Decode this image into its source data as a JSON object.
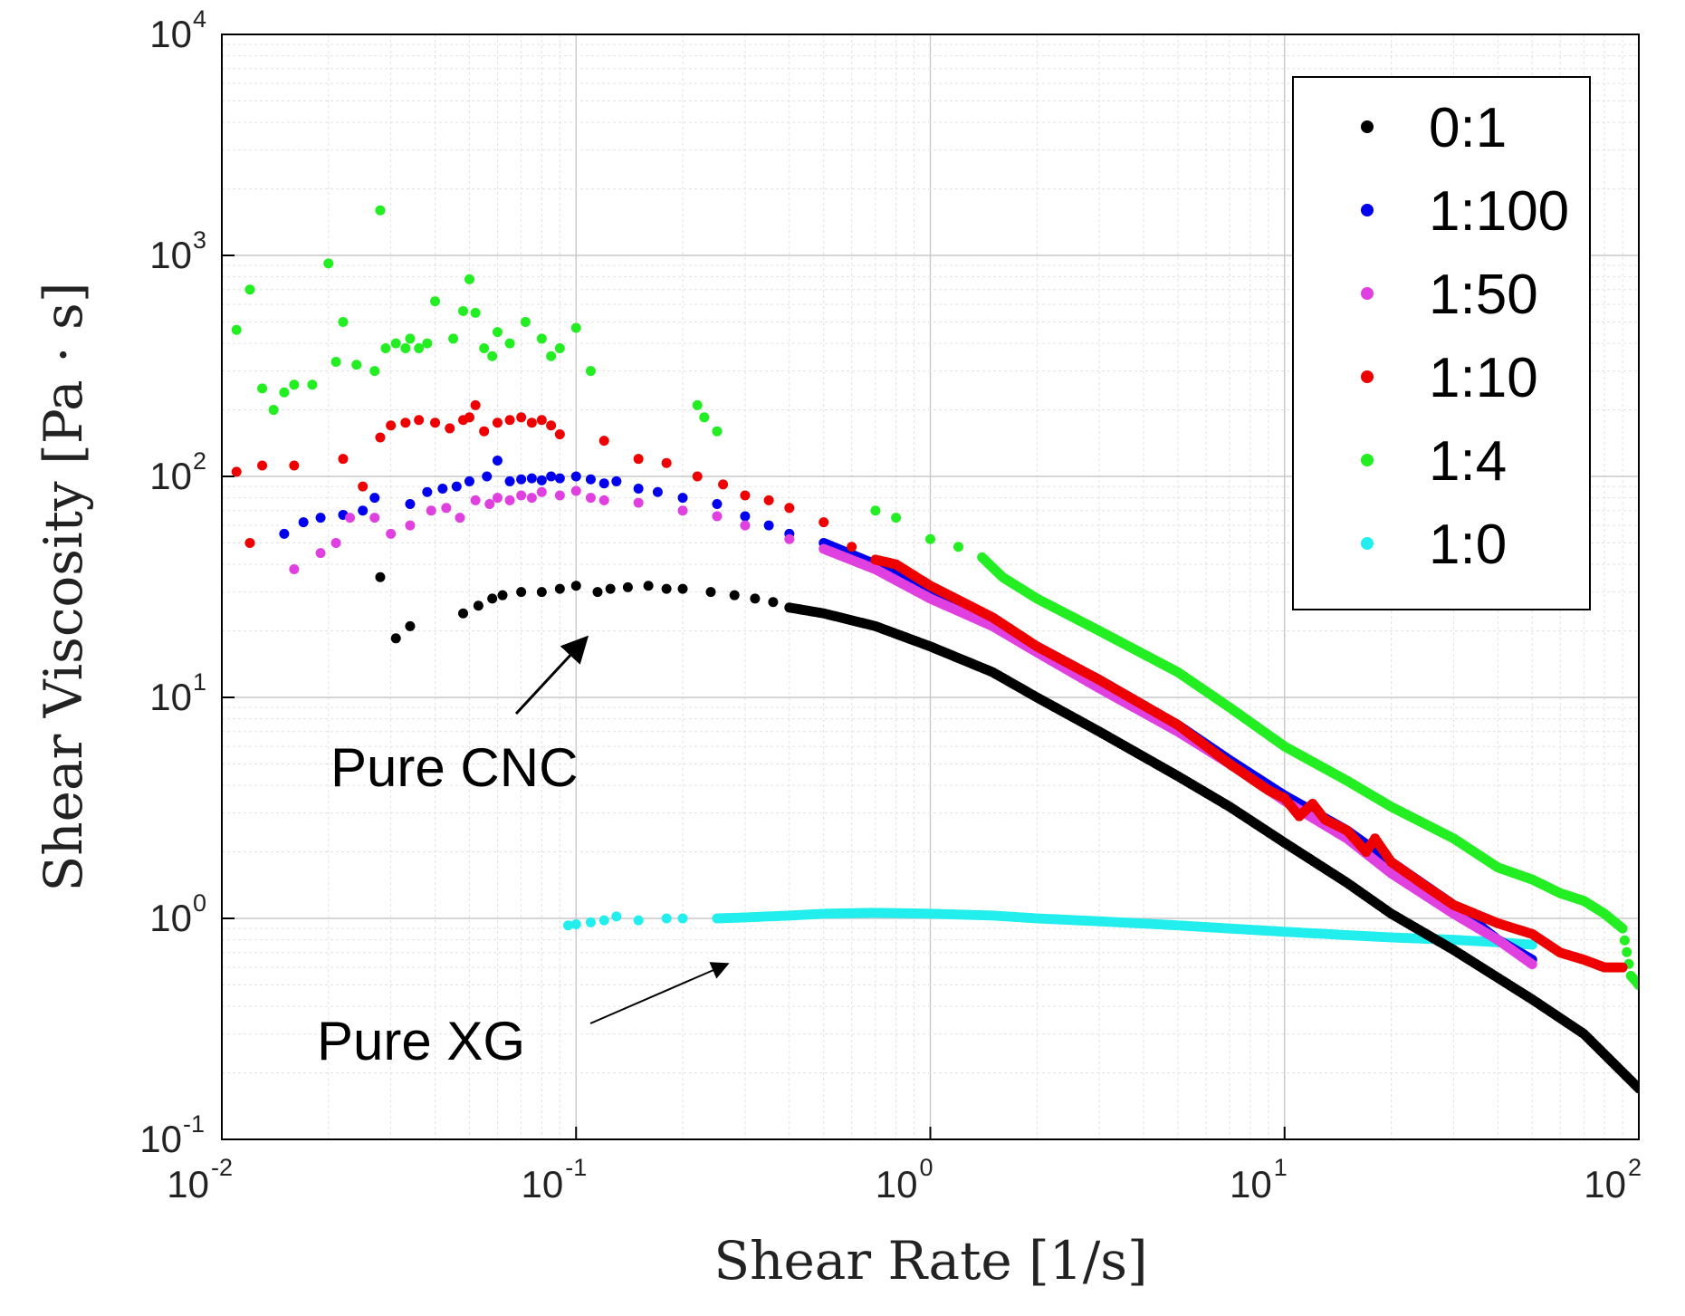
{
  "chart_data": {
    "type": "scatter",
    "title": "",
    "xlabel": "Shear Rate [1/s]",
    "ylabel": "Shear Viscosity [Pa · s]",
    "xscale": "log",
    "yscale": "log",
    "xlim": [
      0.01,
      100
    ],
    "ylim": [
      0.1,
      10000
    ],
    "grid": true,
    "legend_position": "top-right",
    "x_ticks": [
      {
        "base": "10",
        "exp": "-2",
        "value": 0.01
      },
      {
        "base": "10",
        "exp": "-1",
        "value": 0.1
      },
      {
        "base": "10",
        "exp": "0",
        "value": 1
      },
      {
        "base": "10",
        "exp": "1",
        "value": 10
      },
      {
        "base": "10",
        "exp": "2",
        "value": 100
      }
    ],
    "y_ticks": [
      {
        "base": "10",
        "exp": "-1",
        "value": 0.1
      },
      {
        "base": "10",
        "exp": "0",
        "value": 1
      },
      {
        "base": "10",
        "exp": "1",
        "value": 10
      },
      {
        "base": "10",
        "exp": "2",
        "value": 100
      },
      {
        "base": "10",
        "exp": "3",
        "value": 1000
      },
      {
        "base": "10",
        "exp": "4",
        "value": 10000
      }
    ],
    "series": [
      {
        "name": "0:1",
        "color": "#000000",
        "dense_from": 0.4,
        "points": [
          [
            0.028,
            35
          ],
          [
            0.031,
            18.5
          ],
          [
            0.034,
            21
          ],
          [
            0.048,
            24
          ],
          [
            0.053,
            26
          ],
          [
            0.058,
            28
          ],
          [
            0.062,
            29
          ],
          [
            0.07,
            30
          ],
          [
            0.08,
            30
          ],
          [
            0.09,
            31
          ],
          [
            0.1,
            32
          ],
          [
            0.115,
            30
          ],
          [
            0.125,
            31
          ],
          [
            0.14,
            31.5
          ],
          [
            0.16,
            32
          ],
          [
            0.18,
            31
          ],
          [
            0.2,
            31
          ],
          [
            0.24,
            30
          ],
          [
            0.28,
            29
          ],
          [
            0.32,
            28
          ],
          [
            0.36,
            27
          ],
          [
            0.4,
            25.5
          ],
          [
            0.5,
            24
          ],
          [
            0.7,
            21
          ],
          [
            1,
            17
          ],
          [
            1.5,
            13
          ],
          [
            2,
            10
          ],
          [
            3,
            7
          ],
          [
            5,
            4.4
          ],
          [
            7,
            3.2
          ],
          [
            10,
            2.2
          ],
          [
            15,
            1.45
          ],
          [
            20,
            1.05
          ],
          [
            30,
            0.72
          ],
          [
            50,
            0.43
          ],
          [
            70,
            0.3
          ],
          [
            100,
            0.17
          ]
        ]
      },
      {
        "name": "1:100",
        "color": "#0000ee",
        "dense_from": 0.5,
        "points": [
          [
            0.015,
            55
          ],
          [
            0.017,
            62
          ],
          [
            0.019,
            65
          ],
          [
            0.022,
            67
          ],
          [
            0.025,
            70
          ],
          [
            0.027,
            80
          ],
          [
            0.034,
            75
          ],
          [
            0.038,
            85
          ],
          [
            0.042,
            88
          ],
          [
            0.046,
            90
          ],
          [
            0.05,
            95
          ],
          [
            0.056,
            100
          ],
          [
            0.06,
            118
          ],
          [
            0.065,
            95
          ],
          [
            0.07,
            97
          ],
          [
            0.075,
            98
          ],
          [
            0.08,
            96
          ],
          [
            0.085,
            100
          ],
          [
            0.09,
            98
          ],
          [
            0.1,
            100
          ],
          [
            0.11,
            97
          ],
          [
            0.12,
            93
          ],
          [
            0.13,
            95
          ],
          [
            0.15,
            88
          ],
          [
            0.17,
            85
          ],
          [
            0.2,
            80
          ],
          [
            0.25,
            75
          ],
          [
            0.3,
            66
          ],
          [
            0.35,
            60
          ],
          [
            0.4,
            55
          ],
          [
            0.5,
            50
          ],
          [
            0.7,
            40
          ],
          [
            1,
            30
          ],
          [
            1.5,
            22
          ],
          [
            2,
            17
          ],
          [
            3,
            12
          ],
          [
            5,
            7.5
          ],
          [
            7,
            5.2
          ],
          [
            10,
            3.6
          ],
          [
            15,
            2.5
          ],
          [
            20,
            1.8
          ],
          [
            30,
            1.15
          ],
          [
            40,
            0.8
          ],
          [
            50,
            0.65
          ]
        ]
      },
      {
        "name": "1:50",
        "color": "#e040e0",
        "dense_from": 0.5,
        "points": [
          [
            0.016,
            38
          ],
          [
            0.019,
            45
          ],
          [
            0.021,
            50
          ],
          [
            0.023,
            65
          ],
          [
            0.027,
            65
          ],
          [
            0.03,
            55
          ],
          [
            0.034,
            60
          ],
          [
            0.039,
            70
          ],
          [
            0.043,
            72
          ],
          [
            0.047,
            65
          ],
          [
            0.052,
            78
          ],
          [
            0.057,
            75
          ],
          [
            0.06,
            80
          ],
          [
            0.065,
            78
          ],
          [
            0.07,
            82
          ],
          [
            0.075,
            80
          ],
          [
            0.08,
            85
          ],
          [
            0.09,
            82
          ],
          [
            0.1,
            86
          ],
          [
            0.11,
            80
          ],
          [
            0.12,
            78
          ],
          [
            0.15,
            76
          ],
          [
            0.2,
            70
          ],
          [
            0.25,
            66
          ],
          [
            0.3,
            60
          ],
          [
            0.4,
            52
          ],
          [
            0.5,
            47
          ],
          [
            0.7,
            38
          ],
          [
            1,
            28
          ],
          [
            1.5,
            21
          ],
          [
            2,
            16
          ],
          [
            3,
            11
          ],
          [
            5,
            7
          ],
          [
            7,
            5
          ],
          [
            10,
            3.4
          ],
          [
            15,
            2.3
          ],
          [
            20,
            1.6
          ],
          [
            30,
            1.05
          ],
          [
            40,
            0.8
          ],
          [
            50,
            0.62
          ]
        ]
      },
      {
        "name": "1:10",
        "color": "#ee0000",
        "dense_from": 0.7,
        "points": [
          [
            0.011,
            105
          ],
          [
            0.012,
            50
          ],
          [
            0.013,
            112
          ],
          [
            0.016,
            112
          ],
          [
            0.022,
            120
          ],
          [
            0.025,
            90
          ],
          [
            0.028,
            150
          ],
          [
            0.03,
            170
          ],
          [
            0.033,
            175
          ],
          [
            0.036,
            180
          ],
          [
            0.04,
            175
          ],
          [
            0.044,
            165
          ],
          [
            0.048,
            180
          ],
          [
            0.05,
            185
          ],
          [
            0.052,
            210
          ],
          [
            0.055,
            160
          ],
          [
            0.06,
            175
          ],
          [
            0.065,
            180
          ],
          [
            0.07,
            185
          ],
          [
            0.075,
            175
          ],
          [
            0.08,
            180
          ],
          [
            0.085,
            170
          ],
          [
            0.09,
            155
          ],
          [
            0.12,
            145
          ],
          [
            0.15,
            120
          ],
          [
            0.18,
            115
          ],
          [
            0.22,
            100
          ],
          [
            0.26,
            92
          ],
          [
            0.3,
            82
          ],
          [
            0.35,
            78
          ],
          [
            0.4,
            72
          ],
          [
            0.5,
            62
          ],
          [
            0.6,
            48
          ],
          [
            0.7,
            42
          ],
          [
            0.8,
            40
          ],
          [
            1,
            32
          ],
          [
            1.5,
            23
          ],
          [
            2,
            17
          ],
          [
            3,
            12
          ],
          [
            5,
            7.5
          ],
          [
            7,
            5
          ],
          [
            9,
            3.8
          ],
          [
            10,
            3.5
          ],
          [
            11,
            2.9
          ],
          [
            12,
            3.3
          ],
          [
            13,
            2.8
          ],
          [
            15,
            2.5
          ],
          [
            17,
            2
          ],
          [
            18,
            2.3
          ],
          [
            20,
            1.8
          ],
          [
            25,
            1.4
          ],
          [
            30,
            1.15
          ],
          [
            40,
            0.95
          ],
          [
            50,
            0.85
          ],
          [
            60,
            0.7
          ],
          [
            70,
            0.65
          ],
          [
            80,
            0.6
          ],
          [
            90,
            0.6
          ]
        ]
      },
      {
        "name": "1:4",
        "color": "#22ee22",
        "dense_from": 1.3,
        "points": [
          [
            0.011,
            460
          ],
          [
            0.012,
            700
          ],
          [
            0.013,
            250
          ],
          [
            0.014,
            200
          ],
          [
            0.015,
            240
          ],
          [
            0.016,
            260
          ],
          [
            0.018,
            260
          ],
          [
            0.02,
            920
          ],
          [
            0.021,
            330
          ],
          [
            0.022,
            500
          ],
          [
            0.024,
            320
          ],
          [
            0.027,
            300
          ],
          [
            0.028,
            1600
          ],
          [
            0.029,
            380
          ],
          [
            0.031,
            400
          ],
          [
            0.033,
            380
          ],
          [
            0.034,
            420
          ],
          [
            0.036,
            380
          ],
          [
            0.038,
            400
          ],
          [
            0.04,
            620
          ],
          [
            0.045,
            420
          ],
          [
            0.048,
            560
          ],
          [
            0.05,
            780
          ],
          [
            0.052,
            550
          ],
          [
            0.055,
            380
          ],
          [
            0.058,
            350
          ],
          [
            0.06,
            450
          ],
          [
            0.065,
            400
          ],
          [
            0.072,
            500
          ],
          [
            0.08,
            420
          ],
          [
            0.085,
            350
          ],
          [
            0.09,
            380
          ],
          [
            0.1,
            470
          ],
          [
            0.11,
            300
          ],
          [
            0.22,
            210
          ],
          [
            0.23,
            185
          ],
          [
            0.25,
            160
          ],
          [
            0.7,
            70
          ],
          [
            0.8,
            65
          ],
          [
            1,
            52
          ],
          [
            1.2,
            48
          ],
          [
            1.4,
            43
          ],
          [
            1.6,
            35
          ],
          [
            2,
            28
          ],
          [
            3,
            20
          ],
          [
            5,
            13
          ],
          [
            7,
            9
          ],
          [
            10,
            6
          ],
          [
            15,
            4.2
          ],
          [
            20,
            3.2
          ],
          [
            30,
            2.3
          ],
          [
            40,
            1.7
          ],
          [
            50,
            1.5
          ],
          [
            60,
            1.3
          ],
          [
            70,
            1.2
          ],
          [
            80,
            1.05
          ],
          [
            90,
            0.9
          ],
          [
            95,
            0.55
          ],
          [
            100,
            0.5
          ]
        ]
      },
      {
        "name": "1:0",
        "color": "#22eeee",
        "dense_from": 0.25,
        "points": [
          [
            0.095,
            0.93
          ],
          [
            0.1,
            0.94
          ],
          [
            0.11,
            0.96
          ],
          [
            0.12,
            0.98
          ],
          [
            0.13,
            1.02
          ],
          [
            0.15,
            0.98
          ],
          [
            0.18,
            1.0
          ],
          [
            0.2,
            1.0
          ],
          [
            0.25,
            1.0
          ],
          [
            0.3,
            1.01
          ],
          [
            0.4,
            1.03
          ],
          [
            0.5,
            1.05
          ],
          [
            0.7,
            1.06
          ],
          [
            1,
            1.05
          ],
          [
            1.5,
            1.03
          ],
          [
            2,
            1.0
          ],
          [
            3,
            0.97
          ],
          [
            5,
            0.93
          ],
          [
            7,
            0.9
          ],
          [
            10,
            0.87
          ],
          [
            15,
            0.84
          ],
          [
            20,
            0.82
          ],
          [
            30,
            0.8
          ],
          [
            40,
            0.78
          ],
          [
            50,
            0.76
          ]
        ]
      }
    ],
    "annotations": [
      {
        "text": "Pure CNC",
        "target_x": 0.12,
        "target_y": 18
      },
      {
        "text": "Pure XG",
        "target_x": 0.17,
        "target_y": 0.8
      }
    ]
  }
}
